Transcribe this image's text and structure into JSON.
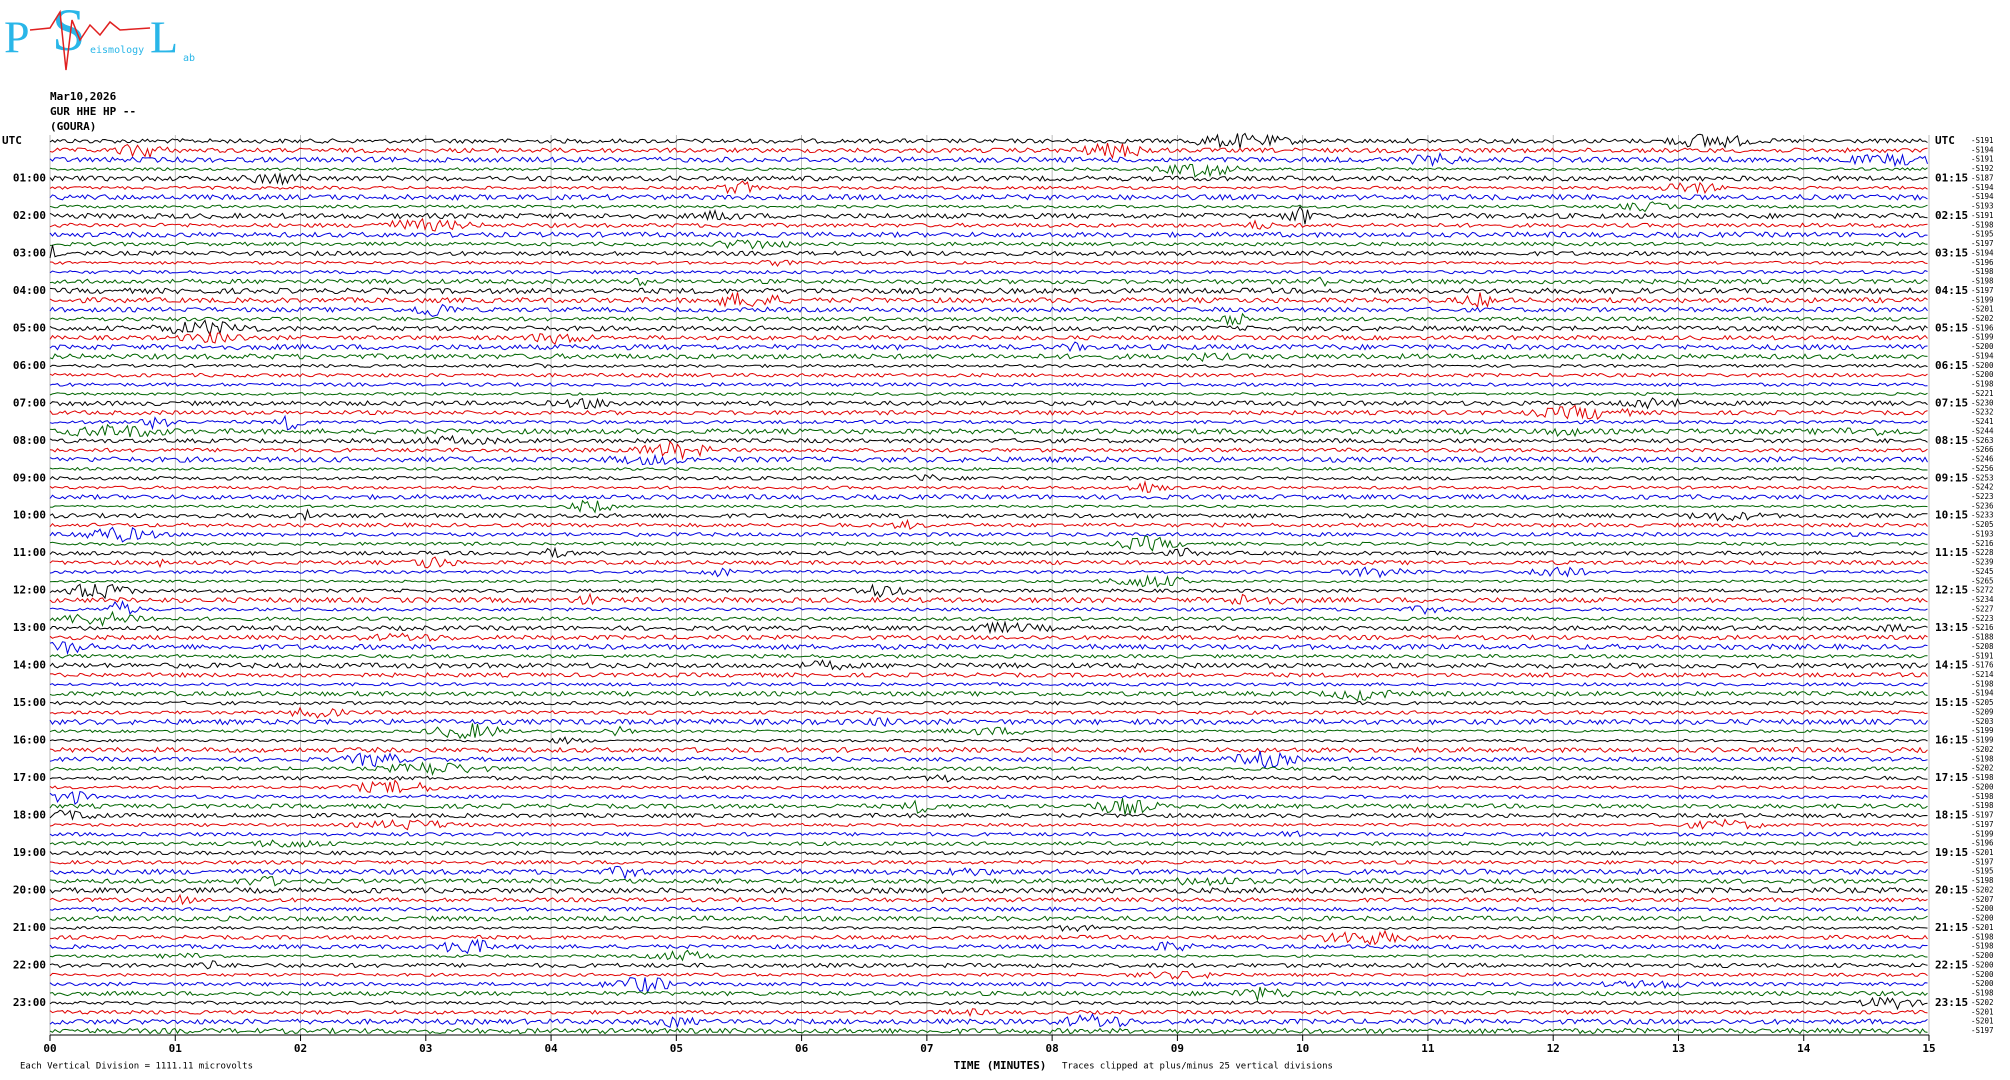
{
  "header": {
    "date": "Mar10,2026",
    "station": "GUR HHE HP --",
    "location": "(GOURA)"
  },
  "logo": {
    "p": "P",
    "s": "S",
    "l": "L",
    "eismology": "eismology",
    "ab": "ab"
  },
  "left_labels": [
    "UTC",
    "01:00",
    "02:00",
    "03:00",
    "04:00",
    "05:00",
    "06:00",
    "07:00",
    "08:00",
    "09:00",
    "10:00",
    "11:00",
    "12:00",
    "13:00",
    "14:00",
    "15:00",
    "16:00",
    "17:00",
    "18:00",
    "19:00",
    "20:00",
    "21:00",
    "22:00",
    "23:00"
  ],
  "right_labels": [
    "UTC",
    "01:15",
    "02:15",
    "03:15",
    "04:15",
    "05:15",
    "06:15",
    "07:15",
    "08:15",
    "09:15",
    "10:15",
    "11:15",
    "12:15",
    "13:15",
    "14:15",
    "15:15",
    "16:15",
    "17:15",
    "18:15",
    "19:15",
    "20:15",
    "21:15",
    "22:15",
    "23:15"
  ],
  "trace_offsets": [
    "-S191",
    "-S194",
    "-S191",
    "-S192",
    "-S187",
    "-S194",
    "-S194",
    "-S193",
    "-S191",
    "-S198",
    "-S195",
    "-S197",
    "-S194",
    "-S196",
    "-S198",
    "-S198",
    "-S197",
    "-S199",
    "-S201",
    "-S202",
    "-S196",
    "-S199",
    "-S200",
    "-S194",
    "-S200",
    "-S200",
    "-S198",
    "-S221",
    "-S230",
    "-S232",
    "-S241",
    "-S244",
    "-S263",
    "-S266",
    "-S246",
    "-S256",
    "-S253",
    "-S242",
    "-S223",
    "-S236",
    "-S233",
    "-S205",
    "-S193",
    "-S216",
    "-S228",
    "-S239",
    "-S245",
    "-S265",
    "-S272",
    "-S234",
    "-S227",
    "-S223",
    "-S216",
    "-S188",
    "-S208",
    "-S191",
    "-S176",
    "-S214",
    "-S198",
    "-S194",
    "-S205",
    "-S209",
    "-S203",
    "-S199",
    "-S199",
    "-S202",
    "-S198",
    "-S202",
    "-S198",
    "-S200",
    "-S198",
    "-S198",
    "-S197",
    "-S197",
    "-S199",
    "-S196",
    "-S201",
    "-S197",
    "-S195",
    "-S198",
    "-S202",
    "-S207",
    "-S200",
    "-S200",
    "-S201",
    "-S198",
    "-S198",
    "-S200",
    "-S200",
    "-S200",
    "-S200",
    "-S198",
    "-S202",
    "-S201",
    "-S201",
    "-S197"
  ],
  "x_labels": [
    "00",
    "01",
    "02",
    "03",
    "04",
    "05",
    "06",
    "07",
    "08",
    "09",
    "10",
    "11",
    "12",
    "13",
    "14",
    "15"
  ],
  "x_title": "TIME (MINUTES)",
  "footer": {
    "scale": "Each Vertical Division = 1111.11 microvolts",
    "clip": "Traces clipped at plus/minus 25 vertical divisions"
  }
}
